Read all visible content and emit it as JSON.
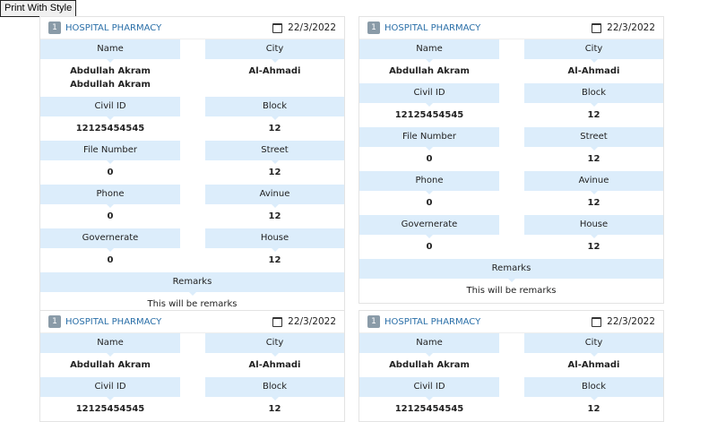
{
  "print_button": "Print With Style",
  "cards": [
    {
      "badge": "1",
      "title": "HOSPITAL PHARMACY",
      "date": "22/3/2022",
      "rows": [
        {
          "l_label": "Name",
          "l_value": "Abdullah Akram Abdullah Akram",
          "r_label": "City",
          "r_value": "Al-Ahmadi"
        },
        {
          "l_label": "Civil ID",
          "l_value": "12125454545",
          "r_label": "Block",
          "r_value": "12"
        },
        {
          "l_label": "File Number",
          "l_value": "0",
          "r_label": "Street",
          "r_value": "12"
        },
        {
          "l_label": "Phone",
          "l_value": "0",
          "r_label": "Avinue",
          "r_value": "12"
        },
        {
          "l_label": "Governerate",
          "l_value": "0",
          "r_label": "House",
          "r_value": "12"
        }
      ],
      "remarks_label": "Remarks",
      "remarks_value": "This will be remarks"
    },
    {
      "badge": "1",
      "title": "HOSPITAL PHARMACY",
      "date": "22/3/2022",
      "rows": [
        {
          "l_label": "Name",
          "l_value": "Abdullah Akram",
          "r_label": "City",
          "r_value": "Al-Ahmadi"
        },
        {
          "l_label": "Civil ID",
          "l_value": "12125454545",
          "r_label": "Block",
          "r_value": "12"
        },
        {
          "l_label": "File Number",
          "l_value": "0",
          "r_label": "Street",
          "r_value": "12"
        },
        {
          "l_label": "Phone",
          "l_value": "0",
          "r_label": "Avinue",
          "r_value": "12"
        },
        {
          "l_label": "Governerate",
          "l_value": "0",
          "r_label": "House",
          "r_value": "12"
        }
      ],
      "remarks_label": "Remarks",
      "remarks_value": "This will be remarks"
    },
    {
      "badge": "1",
      "title": "HOSPITAL PHARMACY",
      "date": "22/3/2022",
      "rows": [
        {
          "l_label": "Name",
          "l_value": "Abdullah Akram",
          "r_label": "City",
          "r_value": "Al-Ahmadi"
        },
        {
          "l_label": "Civil ID",
          "l_value": "12125454545",
          "r_label": "Block",
          "r_value": "12"
        }
      ]
    },
    {
      "badge": "1",
      "title": "HOSPITAL PHARMACY",
      "date": "22/3/2022",
      "rows": [
        {
          "l_label": "Name",
          "l_value": "Abdullah Akram",
          "r_label": "City",
          "r_value": "Al-Ahmadi"
        },
        {
          "l_label": "Civil ID",
          "l_value": "12125454545",
          "r_label": "Block",
          "r_value": "12"
        }
      ]
    }
  ]
}
